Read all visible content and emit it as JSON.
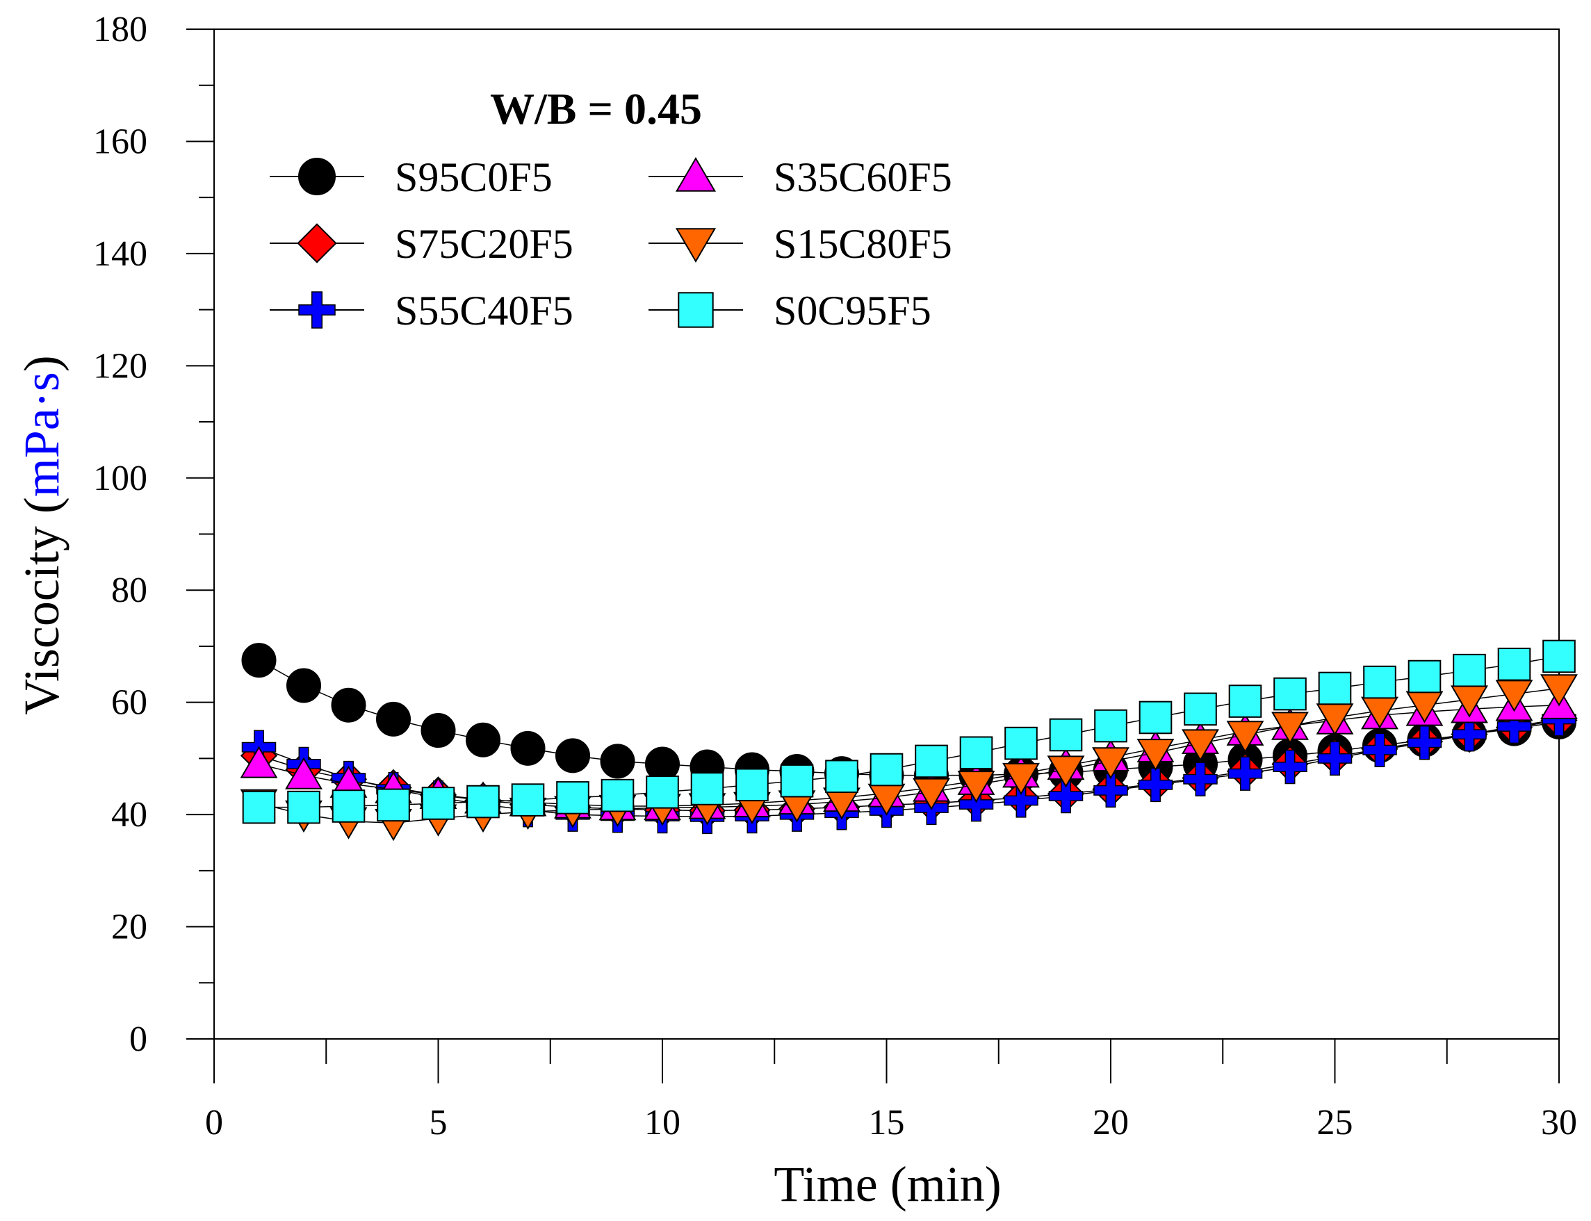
{
  "chart_data": {
    "type": "line",
    "annotation": "W/B = 0.45",
    "xlabel": "Time (min)",
    "ylabel_main": "Viscocity (",
    "ylabel_unit": "mPa·s",
    "ylabel_close": ")",
    "unit_color": "#0000ff",
    "xlim": [
      0,
      30
    ],
    "ylim": [
      0,
      180
    ],
    "xticks": [
      "0",
      "5",
      "10",
      "15",
      "20",
      "25",
      "30"
    ],
    "yticks": [
      "0",
      "20",
      "40",
      "60",
      "80",
      "100",
      "120",
      "140",
      "160",
      "180"
    ],
    "grid": false,
    "legend_position": "top-left",
    "x": [
      1,
      2,
      3,
      4,
      5,
      6,
      7,
      8,
      9,
      10,
      11,
      12,
      13,
      14,
      15,
      16,
      17,
      18,
      19,
      20,
      21,
      22,
      23,
      24,
      25,
      26,
      27,
      28,
      29,
      30
    ],
    "series": [
      {
        "name": "S95C0F5",
        "marker": "circle",
        "color": "#000000",
        "values": [
          67.5,
          63,
          59.5,
          57,
          55,
          53.3,
          51.8,
          50.5,
          49.5,
          49,
          48.5,
          48,
          47.7,
          47.3,
          47,
          47,
          47,
          47.2,
          47.5,
          48,
          48.5,
          49,
          49.8,
          50.5,
          51.3,
          52.3,
          53.3,
          54.3,
          55.3,
          56.5
        ]
      },
      {
        "name": "S75C20F5",
        "marker": "diamond",
        "color": "#ff0000",
        "values": [
          50.5,
          48,
          46.3,
          44.8,
          43.5,
          42.5,
          41.8,
          41.3,
          41,
          40.8,
          40.7,
          40.8,
          41,
          41.3,
          41.7,
          42,
          42.5,
          43,
          43.7,
          44.5,
          45.5,
          46.5,
          47.7,
          49,
          50.3,
          51.7,
          53,
          54.3,
          55.5,
          56.8
        ]
      },
      {
        "name": "S55C40F5",
        "marker": "plus",
        "color": "#0000ff",
        "values": [
          52,
          49,
          46.5,
          44.5,
          43,
          41.8,
          40.8,
          40,
          39.8,
          39.7,
          39.6,
          39.7,
          40,
          40.3,
          40.7,
          41.2,
          41.8,
          42.5,
          43.3,
          44.3,
          45.3,
          46.3,
          47.3,
          48.5,
          50,
          51.5,
          52.8,
          54.3,
          55.7,
          57
        ]
      },
      {
        "name": "S35C60F5",
        "marker": "triangle-up",
        "color": "#ff00ff",
        "values": [
          49,
          47,
          45.5,
          44.5,
          43.5,
          42.7,
          42.2,
          41.8,
          41.5,
          41.5,
          41.7,
          42,
          42.5,
          43,
          43.8,
          44.8,
          46,
          47.3,
          48.7,
          50.2,
          51.8,
          53.3,
          54.8,
          55.8,
          56.8,
          57.7,
          58.3,
          58.8,
          59.2,
          59.5
        ]
      },
      {
        "name": "S15C80F5",
        "marker": "triangle-down",
        "color": "#ff6600",
        "values": [
          42,
          40,
          38.8,
          38.5,
          39.3,
          40,
          40.5,
          40.8,
          41,
          41.2,
          41.3,
          41.5,
          41.8,
          42.3,
          43,
          44,
          45.3,
          46.7,
          48,
          49.5,
          51,
          52.7,
          54.2,
          55.8,
          57.3,
          58.5,
          59.5,
          60.5,
          61.5,
          62.5
        ]
      },
      {
        "name": "S0C95F5",
        "marker": "square",
        "color": "#33ffff",
        "values": [
          41.3,
          41.3,
          41.5,
          41.7,
          42,
          42.3,
          42.6,
          43,
          43.4,
          44,
          44.6,
          45.3,
          46,
          46.8,
          48,
          49.5,
          51,
          52.7,
          54.2,
          55.8,
          57.3,
          58.8,
          60.2,
          61.5,
          62.5,
          63.6,
          64.6,
          65.7,
          66.8,
          68.2
        ]
      }
    ]
  }
}
